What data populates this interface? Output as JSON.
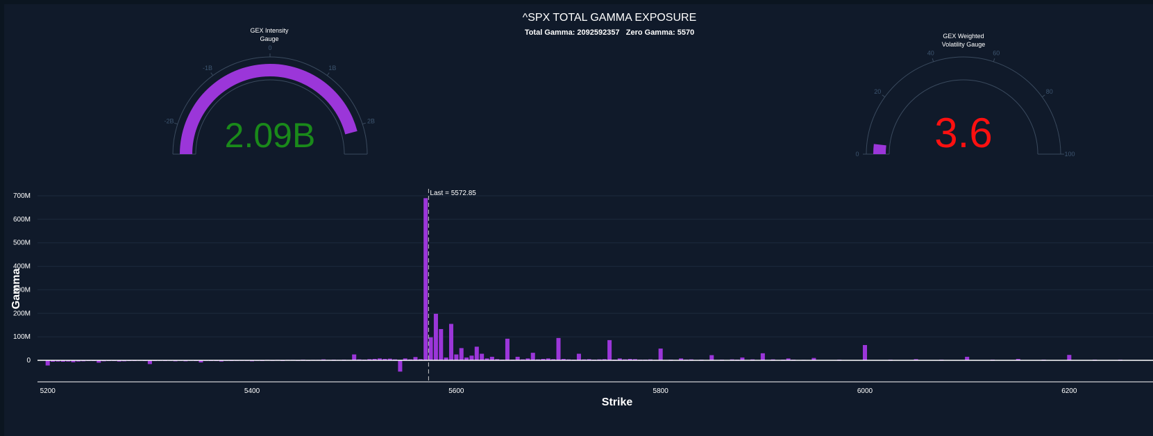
{
  "header": {
    "title": "^SPX TOTAL GAMMA EXPOSURE",
    "subtitle": "Total Gamma: 2092592357   Zero Gamma: 5570"
  },
  "gauges": {
    "intensity": {
      "title_line1": "GEX Intensity",
      "title_line2": "Gauge",
      "value": 2.09,
      "value_text": "2.09B",
      "value_color": "#1a8a1a",
      "range": [
        -2.5,
        2.5
      ],
      "tick_labels": [
        "-2B",
        "-1B",
        "0",
        "1B",
        "2B"
      ],
      "tick_values": [
        -2,
        -1,
        0,
        1,
        2
      ],
      "bar_color": "#9b36d9"
    },
    "volatility": {
      "title_line1": "GEX Weighted",
      "title_line2": "Volatility Gauge",
      "value": 3.6,
      "value_text": "3.6",
      "value_color": "#ff1010",
      "range": [
        0,
        100
      ],
      "tick_labels": [
        "0",
        "20",
        "40",
        "60",
        "80",
        "100"
      ],
      "tick_values": [
        0,
        20,
        40,
        60,
        80,
        100
      ],
      "bar_color": "#9b36d9"
    }
  },
  "chart_data": {
    "type": "bar",
    "xlabel": "Strike",
    "ylabel": "Gamma",
    "xlim": [
      5190,
      6282
    ],
    "ylim": [
      -90,
      720
    ],
    "y_unit": "M",
    "x_tick_values": [
      5200,
      5400,
      5600,
      5800,
      6000,
      6200
    ],
    "x_tick_labels": [
      "5200",
      "5400",
      "5600",
      "5800",
      "6000",
      "6200"
    ],
    "y_tick_values": [
      0,
      100,
      200,
      300,
      400,
      500,
      600,
      700
    ],
    "y_tick_labels": [
      "0",
      "100M",
      "200M",
      "300M",
      "400M",
      "500M",
      "600M",
      "700M"
    ],
    "bar_color": "#9b36d9",
    "last_price": 5572.85,
    "last_label": "Last = 5572.85",
    "grid": true,
    "series": [
      {
        "x": [
          5200,
          5205,
          5210,
          5215,
          5220,
          5225,
          5230,
          5235,
          5240,
          5245,
          5250,
          5255,
          5260,
          5265,
          5270,
          5275,
          5280,
          5285,
          5290,
          5295,
          5300,
          5305,
          5310,
          5315,
          5320,
          5325,
          5330,
          5335,
          5340,
          5345,
          5350,
          5355,
          5360,
          5365,
          5370,
          5375,
          5380,
          5385,
          5390,
          5395,
          5400,
          5405,
          5410,
          5415,
          5420,
          5425,
          5430,
          5435,
          5440,
          5445,
          5450,
          5455,
          5460,
          5465,
          5470,
          5475,
          5480,
          5485,
          5490,
          5495,
          5500,
          5505,
          5510,
          5515,
          5520,
          5525,
          5530,
          5535,
          5540,
          5545,
          5550,
          5555,
          5560,
          5565,
          5570,
          5575,
          5580,
          5585,
          5590,
          5595,
          5600,
          5605,
          5610,
          5615,
          5620,
          5625,
          5630,
          5635,
          5640,
          5645,
          5650,
          5655,
          5660,
          5665,
          5670,
          5675,
          5680,
          5685,
          5690,
          5695,
          5700,
          5705,
          5710,
          5715,
          5720,
          5725,
          5730,
          5735,
          5740,
          5745,
          5750,
          5755,
          5760,
          5765,
          5770,
          5775,
          5780,
          5785,
          5790,
          5795,
          5800,
          5810,
          5820,
          5825,
          5830,
          5840,
          5850,
          5860,
          5870,
          5875,
          5880,
          5890,
          5900,
          5910,
          5920,
          5925,
          5930,
          5940,
          5950,
          5975,
          6000,
          6025,
          6050,
          6075,
          6100,
          6125,
          6150,
          6175,
          6200,
          6225,
          6250
        ],
        "values": [
          -22,
          -6,
          -5,
          -6,
          -5,
          -8,
          -5,
          -4,
          -3,
          -3,
          -10,
          -4,
          -3,
          -3,
          -5,
          -4,
          -3,
          -3,
          -2,
          -3,
          -16,
          -3,
          -2,
          -3,
          -2,
          -4,
          -2,
          -4,
          -2,
          -3,
          -9,
          -2,
          -3,
          -3,
          -5,
          -2,
          -3,
          -2,
          -2,
          -2,
          -4,
          -2,
          -3,
          2,
          -2,
          2,
          -3,
          2,
          2,
          -2,
          3,
          -2,
          2,
          2,
          4,
          2,
          3,
          2,
          3,
          2,
          25,
          4,
          3,
          5,
          6,
          8,
          6,
          7,
          4,
          -48,
          8,
          4,
          14,
          5,
          690,
          98,
          198,
          133,
          12,
          155,
          25,
          52,
          12,
          20,
          58,
          28,
          8,
          15,
          5,
          3,
          92,
          3,
          15,
          4,
          8,
          32,
          4,
          6,
          8,
          5,
          95,
          6,
          4,
          3,
          28,
          4,
          5,
          3,
          4,
          5,
          86,
          3,
          8,
          4,
          6,
          5,
          3,
          3,
          4,
          2,
          50,
          3,
          8,
          3,
          4,
          3,
          22,
          3,
          4,
          3,
          12,
          4,
          30,
          4,
          3,
          8,
          3,
          2,
          10,
          3,
          65,
          3,
          5,
          3,
          15,
          3,
          6,
          3,
          23,
          3,
          3
        ]
      }
    ]
  }
}
